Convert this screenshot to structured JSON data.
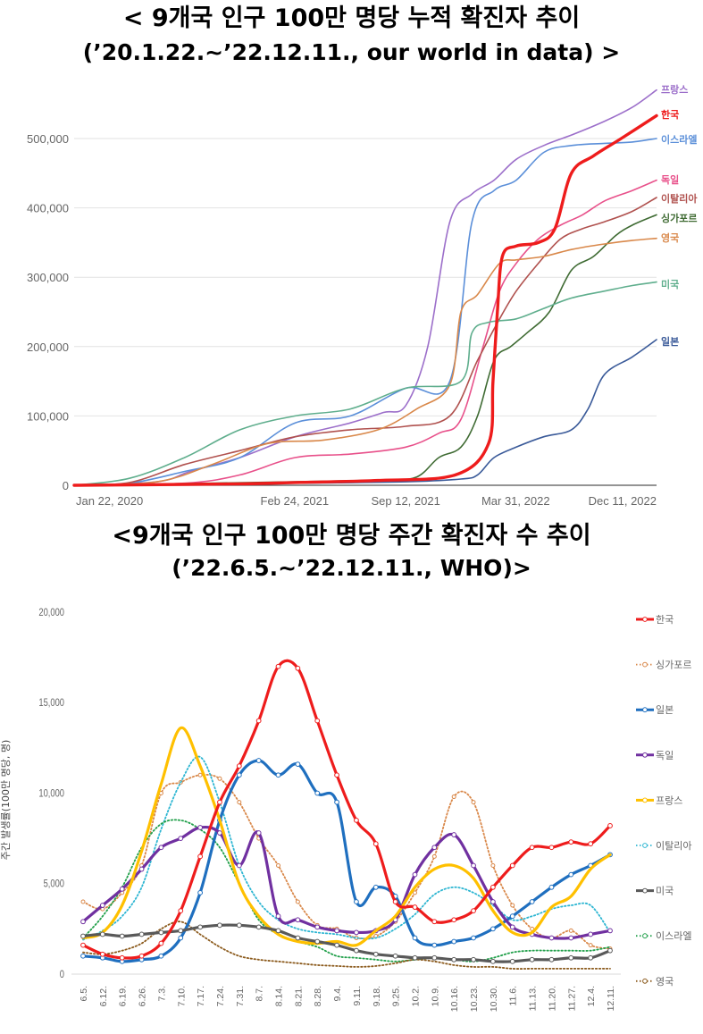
{
  "titles": {
    "chart1_line1": "< 9개국 인구 100만 명당 누적 확진자 추이",
    "chart1_line2": "(’20.1.22.~’22.12.11., our world in data) >",
    "chart2_line1": "<9개국 인구 100만 명당 주간 확진자 수 추이",
    "chart2_line2": "(’22.6.5.~’22.12.11., WHO)>"
  },
  "chart_data": [
    {
      "type": "line",
      "title": "< 9개국 인구 100만 명당 누적 확진자 추이 (’20.1.22.~’22.12.11., our world in data) >",
      "xlabel": "",
      "ylabel": "",
      "x_ticks": [
        "Jan 22, 2020",
        "Feb 24, 2021",
        "Sep 12, 2021",
        "Mar 31, 2022",
        "Dec 11, 2022"
      ],
      "y_ticks": [
        "0",
        "100,000",
        "200,000",
        "300,000",
        "400,000",
        "500,000"
      ],
      "xlim": [
        0,
        1054
      ],
      "ylim": [
        0,
        570000
      ],
      "grid": true,
      "legend": "right, labels at line ends",
      "x_unit": "days since Jan 22, 2020",
      "series": [
        {
          "name": "프랑스",
          "color": "#9c6fca",
          "width": 1.6,
          "x": [
            0,
            150,
            210,
            300,
            400,
            500,
            560,
            600,
            640,
            680,
            720,
            760,
            800,
            850,
            900,
            960,
            1010,
            1054
          ],
          "y": [
            0,
            5000,
            20000,
            40000,
            70000,
            90000,
            105000,
            115000,
            200000,
            380000,
            420000,
            440000,
            470000,
            490000,
            505000,
            525000,
            545000,
            570000
          ]
        },
        {
          "name": "한국",
          "color": "#ee1c1c",
          "width": 3.4,
          "x": [
            0,
            300,
            400,
            550,
            690,
            750,
            758,
            766,
            775,
            800,
            840,
            870,
            900,
            940,
            990,
            1054
          ],
          "y": [
            0,
            2000,
            4000,
            7000,
            15000,
            60000,
            150000,
            250000,
            330000,
            345000,
            350000,
            370000,
            450000,
            475000,
            500000,
            533000
          ]
        },
        {
          "name": "이스라엘",
          "color": "#5b8fd9",
          "width": 1.6,
          "x": [
            0,
            100,
            200,
            300,
            400,
            500,
            600,
            680,
            720,
            760,
            800,
            850,
            900,
            960,
            1010,
            1054
          ],
          "y": [
            0,
            3000,
            20000,
            40000,
            90000,
            100000,
            140000,
            150000,
            380000,
            425000,
            440000,
            480000,
            490000,
            493000,
            495000,
            500000
          ]
        },
        {
          "name": "독일",
          "color": "#e8508a",
          "width": 1.6,
          "x": [
            0,
            200,
            300,
            400,
            500,
            600,
            660,
            700,
            740,
            770,
            800,
            840,
            880,
            920,
            960,
            1010,
            1054
          ],
          "y": [
            0,
            3000,
            15000,
            40000,
            45000,
            55000,
            75000,
            95000,
            200000,
            280000,
            320000,
            355000,
            375000,
            390000,
            410000,
            425000,
            440000
          ]
        },
        {
          "name": "이탈리아",
          "color": "#b0514e",
          "width": 1.6,
          "x": [
            0,
            100,
            200,
            300,
            400,
            500,
            600,
            680,
            730,
            770,
            800,
            840,
            880,
            920,
            960,
            1010,
            1054
          ],
          "y": [
            0,
            4000,
            30000,
            50000,
            70000,
            80000,
            85000,
            100000,
            180000,
            240000,
            280000,
            320000,
            355000,
            370000,
            380000,
            395000,
            415000
          ]
        },
        {
          "name": "싱가포르",
          "color": "#3f6b33",
          "width": 1.6,
          "x": [
            0,
            400,
            560,
            620,
            660,
            700,
            730,
            760,
            790,
            820,
            860,
            900,
            940,
            980,
            1010,
            1054
          ],
          "y": [
            0,
            5000,
            8000,
            12000,
            40000,
            55000,
            100000,
            180000,
            200000,
            220000,
            250000,
            310000,
            330000,
            360000,
            375000,
            390000
          ]
        },
        {
          "name": "영국",
          "color": "#d9884a",
          "width": 1.6,
          "x": [
            0,
            150,
            250,
            350,
            450,
            550,
            620,
            680,
            700,
            730,
            770,
            800,
            850,
            900,
            960,
            1010,
            1054
          ],
          "y": [
            0,
            5000,
            30000,
            60000,
            65000,
            80000,
            110000,
            145000,
            250000,
            275000,
            320000,
            325000,
            330000,
            340000,
            348000,
            353000,
            356000
          ]
        },
        {
          "name": "미국",
          "color": "#5fae8d",
          "width": 1.6,
          "x": [
            0,
            100,
            200,
            300,
            400,
            500,
            600,
            700,
            720,
            750,
            800,
            850,
            900,
            960,
            1010,
            1054
          ],
          "y": [
            0,
            10000,
            40000,
            80000,
            100000,
            110000,
            140000,
            150000,
            220000,
            235000,
            240000,
            255000,
            270000,
            280000,
            288000,
            293000
          ]
        },
        {
          "name": "일본",
          "color": "#3a5a99",
          "width": 1.6,
          "x": [
            0,
            400,
            600,
            700,
            730,
            760,
            800,
            850,
            900,
            930,
            960,
            1010,
            1054
          ],
          "y": [
            0,
            3000,
            5000,
            9000,
            15000,
            40000,
            55000,
            70000,
            80000,
            110000,
            160000,
            185000,
            210000
          ]
        }
      ]
    },
    {
      "type": "line",
      "title": "<9개국 인구 100만 명당 주간 확진자 수 추이 (’22.6.5.~’22.12.11., WHO)>",
      "xlabel": "",
      "ylabel": "주간 발생률(100만 명당, 명)",
      "categories": [
        "6.5.",
        "6.12.",
        "6.19.",
        "6.26.",
        "7.3.",
        "7.10.",
        "7.17.",
        "7.24.",
        "7.31.",
        "8.7.",
        "8.14.",
        "8.21.",
        "8.28.",
        "9.4.",
        "9.11.",
        "9.18.",
        "9.25.",
        "10.2.",
        "10.9.",
        "10.16.",
        "10.23.",
        "10.30.",
        "11.6.",
        "11.13.",
        "11.20.",
        "11.27.",
        "12.4.",
        "12.11."
      ],
      "y_ticks": [
        "0",
        "5,000",
        "10,000",
        "15,000",
        "20,000"
      ],
      "ylim": [
        0,
        20000
      ],
      "grid": false,
      "legend": "right",
      "series": [
        {
          "name": "한국",
          "color": "#ee1c1c",
          "dash": "solid",
          "width": 3.2,
          "marker": true,
          "values": [
            1600,
            1100,
            900,
            1000,
            1700,
            3500,
            6500,
            9500,
            11500,
            14000,
            17000,
            16900,
            14000,
            11000,
            8500,
            7200,
            4000,
            3700,
            2900,
            3000,
            3500,
            4800,
            6000,
            7000,
            7000,
            7300,
            7200,
            8200
          ]
        },
        {
          "name": "싱가포르",
          "color": "#d9884a",
          "dash": "dotted",
          "width": 1.8,
          "marker": true,
          "values": [
            4000,
            3600,
            4500,
            6000,
            10000,
            10600,
            11000,
            10800,
            9500,
            7500,
            6000,
            4000,
            2700,
            2500,
            2000,
            2100,
            2900,
            4500,
            6500,
            9800,
            9500,
            6000,
            3800,
            2500,
            2000,
            2400,
            1600,
            1400
          ]
        },
        {
          "name": "일본",
          "color": "#1f6fbf",
          "dash": "solid",
          "width": 3.2,
          "marker": true,
          "values": [
            1000,
            900,
            700,
            800,
            1000,
            2000,
            4500,
            8500,
            11000,
            11800,
            11000,
            11600,
            10000,
            9500,
            4000,
            4800,
            4300,
            2000,
            1600,
            1800,
            2000,
            2500,
            3200,
            4000,
            4800,
            5500,
            6000,
            6600
          ]
        },
        {
          "name": "독일",
          "color": "#7030a0",
          "dash": "solid",
          "width": 3.2,
          "marker": true,
          "values": [
            2900,
            3800,
            4700,
            5800,
            7000,
            7500,
            8100,
            7800,
            6000,
            7800,
            3200,
            3000,
            2600,
            2400,
            2300,
            2400,
            3000,
            5500,
            7000,
            7700,
            6000,
            4000,
            2600,
            2200,
            2000,
            2000,
            2200,
            2400
          ]
        },
        {
          "name": "프랑스",
          "color": "#ffc000",
          "dash": "solid",
          "width": 3.2,
          "marker": false,
          "values": [
            2000,
            2300,
            3800,
            6800,
            10500,
            13600,
            11500,
            8500,
            5000,
            3200,
            2200,
            1800,
            1700,
            1800,
            1600,
            2400,
            3200,
            4800,
            5800,
            6000,
            5300,
            3500,
            2300,
            2300,
            3700,
            4300,
            5800,
            6600
          ]
        },
        {
          "name": "이탈리아",
          "color": "#2eb6d2",
          "dash": "dotted",
          "width": 1.8,
          "marker": false,
          "values": [
            1900,
            2400,
            3200,
            4800,
            8000,
            10600,
            12000,
            9500,
            6000,
            4000,
            3000,
            2500,
            2300,
            2200,
            2000,
            2000,
            2500,
            3300,
            4400,
            4800,
            4500,
            3800,
            3000,
            3200,
            3600,
            3800,
            3800,
            2300
          ]
        },
        {
          "name": "미국",
          "color": "#595959",
          "dash": "solid",
          "width": 3.2,
          "marker": true,
          "values": [
            2100,
            2200,
            2100,
            2200,
            2300,
            2400,
            2600,
            2700,
            2700,
            2600,
            2400,
            2000,
            1800,
            1600,
            1300,
            1100,
            1000,
            900,
            900,
            800,
            800,
            700,
            700,
            800,
            800,
            900,
            900,
            1300
          ]
        },
        {
          "name": "이스라엘",
          "color": "#22a04b",
          "dash": "dotted",
          "width": 1.8,
          "marker": false,
          "values": [
            2000,
            3200,
            4800,
            7000,
            8300,
            8500,
            8000,
            7000,
            5000,
            3000,
            2200,
            1800,
            1500,
            1000,
            900,
            800,
            700,
            800,
            900,
            800,
            700,
            900,
            1200,
            1300,
            1300,
            1300,
            1300,
            1500
          ]
        },
        {
          "name": "영국",
          "color": "#8b5a1c",
          "dash": "dotted",
          "width": 1.8,
          "marker": false,
          "values": [
            1200,
            1100,
            1300,
            1700,
            2500,
            2900,
            2200,
            1500,
            1000,
            800,
            700,
            600,
            500,
            450,
            400,
            450,
            600,
            800,
            700,
            500,
            400,
            400,
            300,
            300,
            300,
            300,
            300,
            300
          ]
        }
      ]
    }
  ]
}
